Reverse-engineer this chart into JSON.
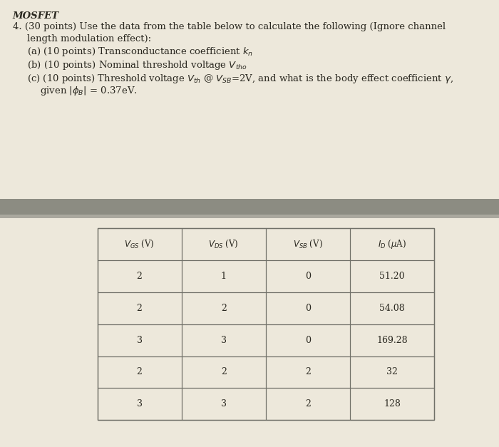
{
  "background_color": "#ede8db",
  "separator_color": "#888880",
  "separator_top_color": "#6a6a62",
  "text_color": "#2a2820",
  "line_color": "#7a7a72",
  "col_headers": [
    "$V_{GS}$ (V)",
    "$V_{DS}$ (V)",
    "$V_{SB}$ (V)",
    "$I_D$ ($\\mu$A)"
  ],
  "table_data": [
    [
      "2",
      "1",
      "0",
      "51.20"
    ],
    [
      "2",
      "2",
      "0",
      "54.08"
    ],
    [
      "3",
      "3",
      "0",
      "169.28"
    ],
    [
      "2",
      "2",
      "2",
      "32"
    ],
    [
      "3",
      "3",
      "2",
      "128"
    ]
  ],
  "figsize": [
    7.0,
    6.27
  ],
  "dpi": 100
}
